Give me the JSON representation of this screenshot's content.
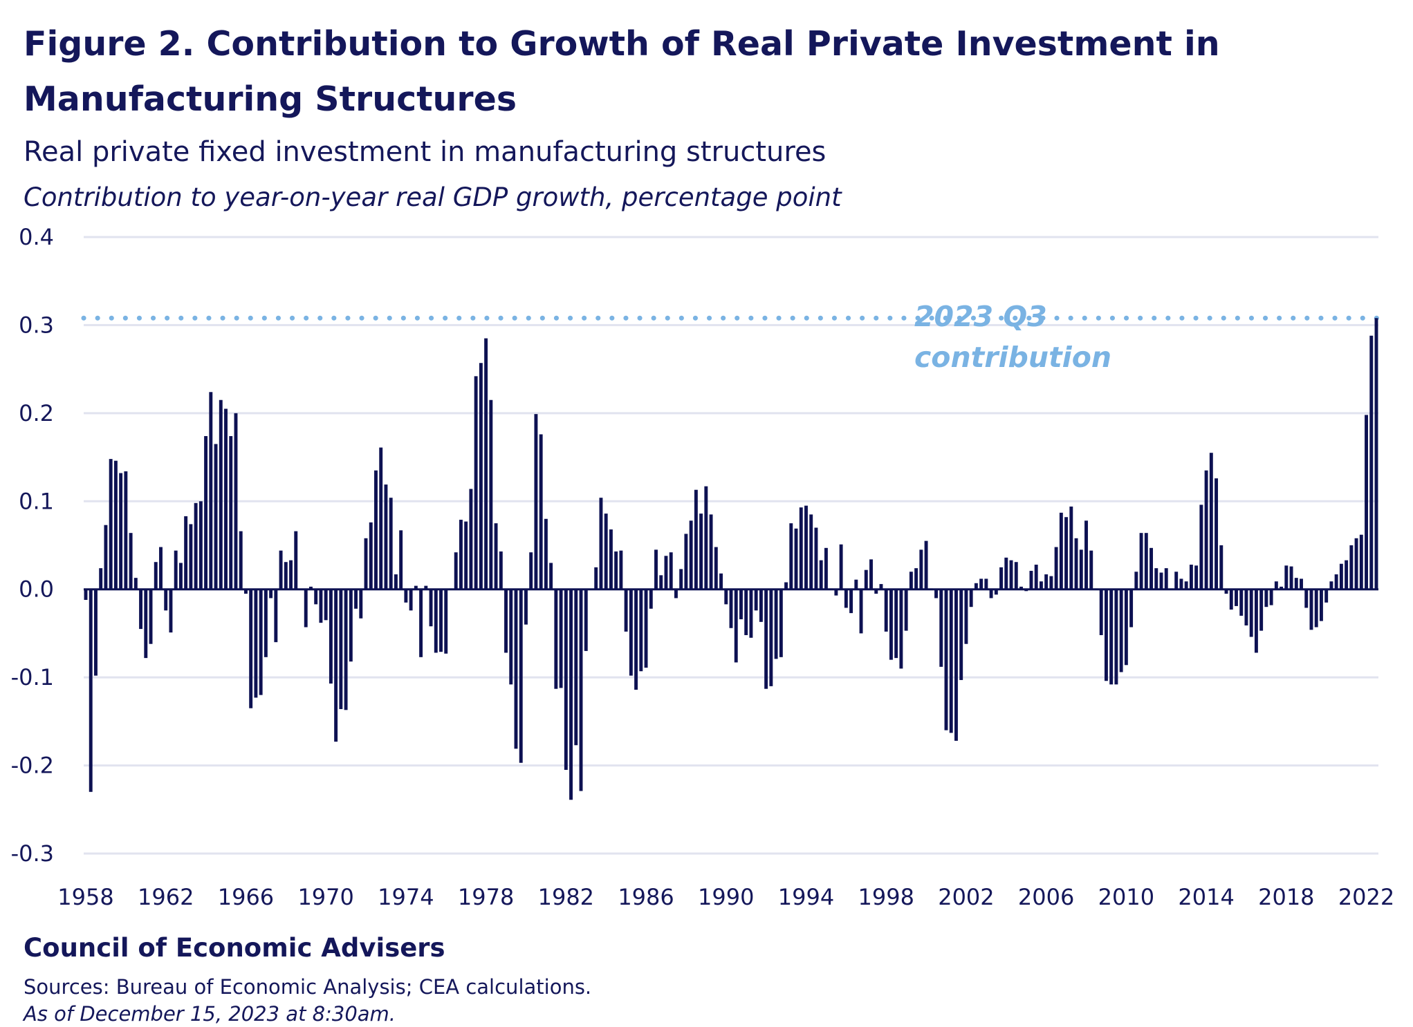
{
  "colors": {
    "bar": "#0d1152",
    "grid": "#e1e3ef",
    "reference": "#7ab3e3",
    "text": "#14175a"
  },
  "chart_data": {
    "type": "bar",
    "title_line1": "Figure 2. Contribution to Growth of Real Private Investment in",
    "title_line2": "Manufacturing Structures",
    "subtitle": "Real private fixed investment in manufacturing structures",
    "ylabel": "Contribution to year-on-year real GDP growth, percentage point",
    "frequency": "quarterly",
    "start": "1958 Q1",
    "ylim": [
      -0.3,
      0.4
    ],
    "yticks": [
      "0.4",
      "0.3",
      "0.2",
      "0.1",
      "0.0",
      "-0.1",
      "-0.2",
      "-0.3"
    ],
    "ytick_values": [
      0.4,
      0.3,
      0.2,
      0.1,
      0.0,
      -0.1,
      -0.2,
      -0.3
    ],
    "xticks": [
      "1958",
      "1962",
      "1966",
      "1970",
      "1974",
      "1978",
      "1982",
      "1986",
      "1990",
      "1994",
      "1998",
      "2002",
      "2006",
      "2010",
      "2014",
      "2018",
      "2022"
    ],
    "grid": true,
    "reference_line": {
      "value": 0.308,
      "label_line1": "2023 Q3",
      "label_line2": "contribution"
    },
    "values": [
      -0.012,
      -0.23,
      -0.098,
      0.024,
      0.073,
      0.148,
      0.146,
      0.132,
      0.134,
      0.064,
      0.013,
      -0.045,
      -0.078,
      -0.062,
      0.031,
      0.048,
      -0.024,
      -0.049,
      0.044,
      0.03,
      0.083,
      0.074,
      0.098,
      0.1,
      0.174,
      0.224,
      0.165,
      0.215,
      0.205,
      0.174,
      0.2,
      0.066,
      -0.005,
      -0.135,
      -0.123,
      -0.12,
      -0.077,
      -0.01,
      -0.06,
      0.044,
      0.031,
      0.033,
      0.066,
      -0.001,
      -0.043,
      0.003,
      -0.017,
      -0.038,
      -0.035,
      -0.107,
      -0.173,
      -0.136,
      -0.137,
      -0.082,
      -0.022,
      -0.033,
      0.058,
      0.076,
      0.135,
      0.161,
      0.119,
      0.104,
      0.017,
      0.067,
      -0.015,
      -0.024,
      0.004,
      -0.077,
      0.004,
      -0.042,
      -0.072,
      -0.071,
      -0.073,
      0.001,
      0.042,
      0.079,
      0.077,
      0.114,
      0.242,
      0.257,
      0.285,
      0.215,
      0.075,
      0.043,
      -0.072,
      -0.108,
      -0.181,
      -0.197,
      -0.04,
      0.042,
      0.199,
      0.176,
      0.08,
      0.03,
      -0.113,
      -0.112,
      -0.205,
      -0.239,
      -0.177,
      -0.229,
      -0.07,
      -0.001,
      0.025,
      0.104,
      0.086,
      0.068,
      0.043,
      0.044,
      -0.048,
      -0.098,
      -0.114,
      -0.093,
      -0.089,
      -0.022,
      0.045,
      0.016,
      0.038,
      0.042,
      -0.01,
      0.023,
      0.063,
      0.078,
      0.113,
      0.086,
      0.117,
      0.085,
      0.048,
      0.018,
      -0.017,
      -0.044,
      -0.083,
      -0.034,
      -0.052,
      -0.055,
      -0.024,
      -0.037,
      -0.113,
      -0.11,
      -0.079,
      -0.077,
      0.008,
      0.075,
      0.069,
      0.093,
      0.095,
      0.085,
      0.07,
      0.033,
      0.047,
      0.001,
      -0.007,
      0.051,
      -0.021,
      -0.027,
      0.011,
      -0.05,
      0.022,
      0.034,
      -0.005,
      0.006,
      -0.048,
      -0.08,
      -0.078,
      -0.09,
      -0.047,
      0.02,
      0.024,
      0.045,
      0.055,
      0.001,
      -0.01,
      -0.088,
      -0.16,
      -0.163,
      -0.172,
      -0.103,
      -0.062,
      -0.02,
      0.007,
      0.012,
      0.012,
      -0.01,
      -0.006,
      0.025,
      0.036,
      0.033,
      0.031,
      0.003,
      -0.002,
      0.021,
      0.028,
      0.009,
      0.017,
      0.015,
      0.048,
      0.087,
      0.082,
      0.094,
      0.058,
      0.045,
      0.078,
      0.044,
      0.001,
      -0.052,
      -0.104,
      -0.108,
      -0.108,
      -0.094,
      -0.086,
      -0.043,
      0.02,
      0.064,
      0.064,
      0.047,
      0.024,
      0.019,
      0.024,
      0.001,
      0.02,
      0.012,
      0.009,
      0.028,
      0.027,
      0.096,
      0.135,
      0.155,
      0.126,
      0.05,
      -0.005,
      -0.023,
      -0.019,
      -0.03,
      -0.041,
      -0.054,
      -0.072,
      -0.047,
      -0.02,
      -0.018,
      0.009,
      0.003,
      0.027,
      0.026,
      0.013,
      0.012,
      -0.021,
      -0.046,
      -0.043,
      -0.036,
      -0.015,
      0.009,
      0.017,
      0.029,
      0.033,
      0.05,
      0.058,
      0.062,
      0.198,
      0.288,
      0.308
    ]
  },
  "footer": {
    "organization": "Council of Economic Advisers",
    "sources": "Sources: Bureau of Economic Analysis; CEA calculations.",
    "as_of": "As of December 15, 2023 at 8:30am."
  }
}
